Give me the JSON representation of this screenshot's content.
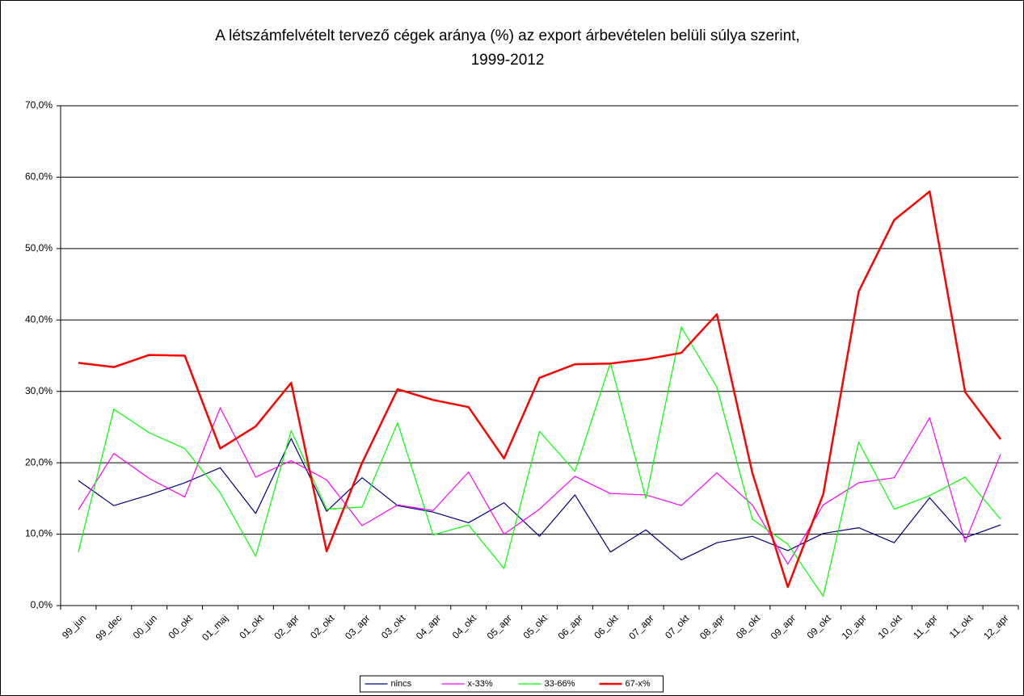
{
  "chart_data": {
    "type": "line",
    "title": [
      "A létszámfelvételt tervező cégek aránya (%) az export árbevételen belüli súlya szerint,",
      "1999-2012"
    ],
    "categories": [
      "99_jun",
      "99_dec",
      "00_jun",
      "00_okt",
      "01_maj",
      "01_okt",
      "02_apr",
      "02_okt",
      "03_apr",
      "03_okt",
      "04_apr",
      "04_okt",
      "05_apr",
      "05_okt",
      "06_apr",
      "06_okt",
      "07_apr",
      "07_okt",
      "08_apr",
      "08_okt",
      "09_apr",
      "09_okt",
      "10_apr",
      "10_okt",
      "11_apr",
      "11_okt",
      "12_apr"
    ],
    "series": [
      {
        "name": "nincs",
        "color": "#000080",
        "values": [
          17.5,
          14.0,
          15.5,
          17.2,
          19.3,
          12.9,
          23.4,
          13.2,
          17.9,
          14.0,
          13.1,
          11.6,
          14.4,
          9.7,
          15.5,
          7.5,
          10.6,
          6.4,
          8.8,
          9.7,
          7.7,
          10.1,
          10.9,
          8.8,
          15.1,
          9.5,
          11.3
        ]
      },
      {
        "name": "x-33%",
        "color": "#ff00ff",
        "values": [
          13.4,
          21.3,
          17.8,
          15.2,
          27.7,
          18.0,
          20.3,
          17.6,
          11.2,
          14.1,
          13.3,
          18.7,
          10.0,
          13.5,
          18.1,
          15.7,
          15.5,
          14.0,
          18.6,
          14.1,
          5.8,
          14.1,
          17.2,
          17.9,
          26.3,
          8.9,
          21.2
        ]
      },
      {
        "name": "33-66%",
        "color": "#00ff00",
        "values": [
          7.5,
          27.5,
          24.2,
          22.0,
          15.8,
          6.9,
          24.5,
          13.5,
          13.8,
          25.6,
          9.9,
          11.3,
          5.2,
          24.4,
          18.8,
          34.0,
          15.0,
          39.0,
          30.6,
          12.1,
          8.6,
          1.3,
          22.9,
          13.5,
          15.4,
          18.0,
          12.1
        ]
      },
      {
        "name": "67-x%",
        "color": "#ff0000",
        "values": [
          34.0,
          33.4,
          35.1,
          35.0,
          22.0,
          25.1,
          31.2,
          7.6,
          20.0,
          30.3,
          28.8,
          27.8,
          20.6,
          31.9,
          33.8,
          33.9,
          34.5,
          35.4,
          40.8,
          18.6,
          2.6,
          15.6,
          44.0,
          54.0,
          58.0,
          29.9,
          23.3
        ]
      }
    ],
    "ylim": [
      0,
      70
    ],
    "yticks": [
      {
        "value": 0,
        "label": "0,0%"
      },
      {
        "value": 10,
        "label": "10,0%"
      },
      {
        "value": 20,
        "label": "20,0%"
      },
      {
        "value": 30,
        "label": "30,0%"
      },
      {
        "value": 40,
        "label": "40,0%"
      },
      {
        "value": 50,
        "label": "50,0%"
      },
      {
        "value": 60,
        "label": "60,0%"
      },
      {
        "value": 70,
        "label": "70,0%"
      }
    ],
    "grid": true,
    "legend": "bottom"
  }
}
